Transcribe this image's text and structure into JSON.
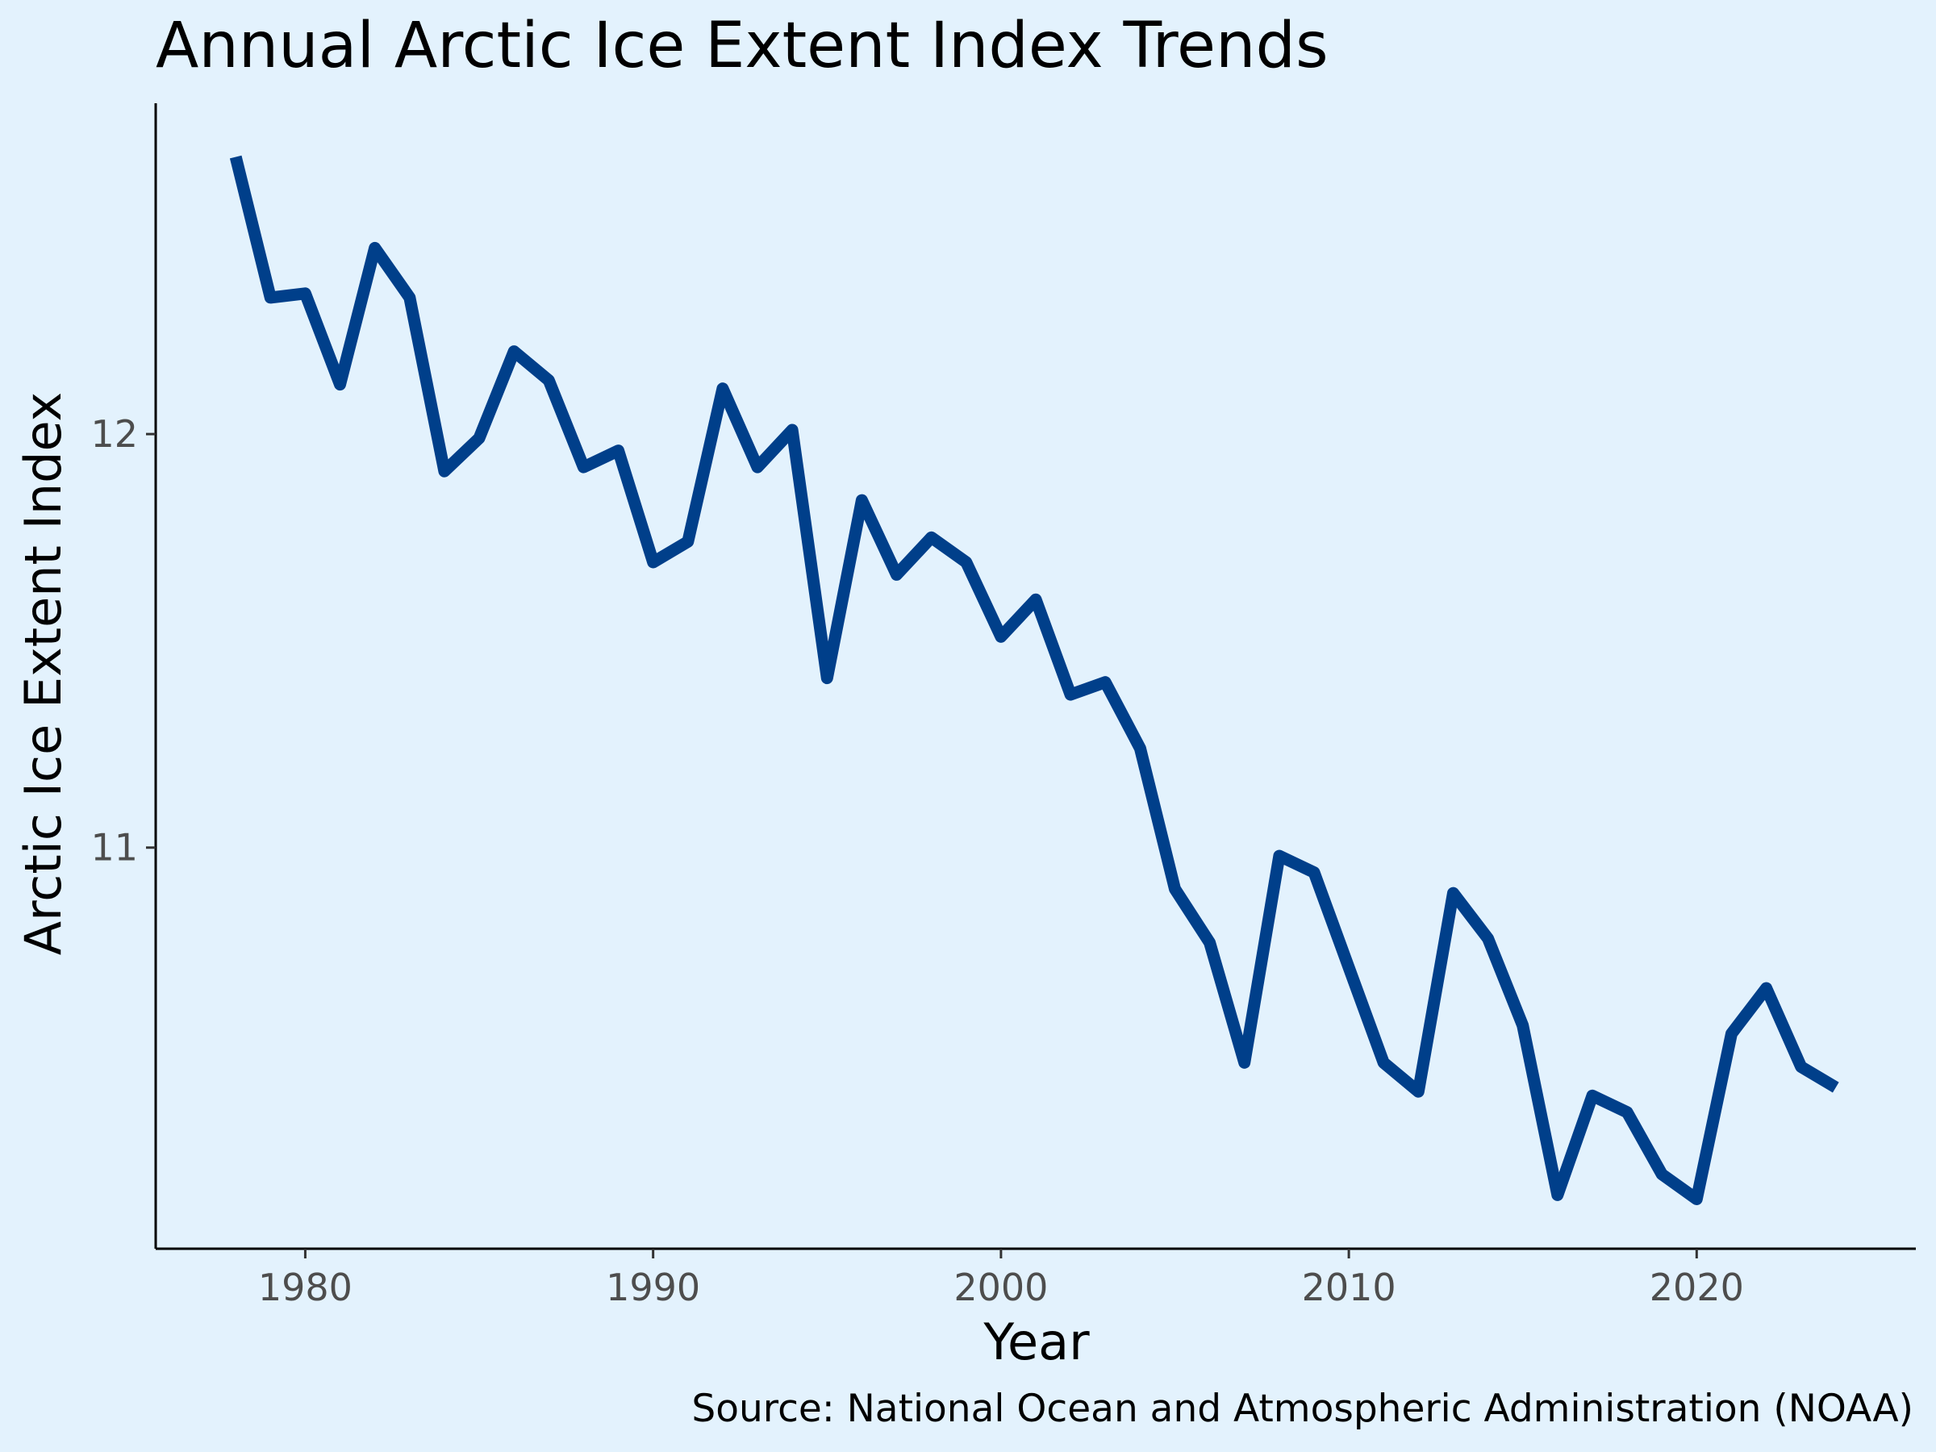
{
  "chart_data": {
    "type": "line",
    "title": "Annual Arctic Ice Extent Index Trends",
    "xlabel": "Year",
    "ylabel": "Arctic Ice Extent Index",
    "caption": "Source: National Ocean and Atmospheric Administration (NOAA)",
    "xlim": [
      1975.7,
      2026.3
    ],
    "ylim": [
      10.03,
      12.8
    ],
    "x_ticks": [
      1980,
      1990,
      2000,
      2010,
      2020
    ],
    "y_ticks": [
      11,
      12
    ],
    "grid": false,
    "legend": "none",
    "line_color": "#003f8a",
    "background_color": "#e3f2fd",
    "series": [
      {
        "x": [
          1978,
          1979,
          1980,
          1981,
          1982,
          1983,
          1984,
          1985,
          1986,
          1987,
          1988,
          1989,
          1990,
          1991,
          1992,
          1993,
          1994,
          1995,
          1996,
          1997,
          1998,
          1999,
          2000,
          2001,
          2002,
          2003,
          2004,
          2005,
          2006,
          2007,
          2008,
          2009,
          2010,
          2011,
          2012,
          2013,
          2014,
          2015,
          2016,
          2017,
          2018,
          2019,
          2020,
          2021,
          2022,
          2023,
          2024
        ],
        "values": [
          12.67,
          12.33,
          12.34,
          12.12,
          12.45,
          12.33,
          11.91,
          11.99,
          12.2,
          12.13,
          11.92,
          11.96,
          11.69,
          11.74,
          12.11,
          11.92,
          12.01,
          11.41,
          11.84,
          11.66,
          11.75,
          11.69,
          11.51,
          11.6,
          11.37,
          11.4,
          11.24,
          10.9,
          10.77,
          10.48,
          10.98,
          10.94,
          10.71,
          10.48,
          10.41,
          10.89,
          10.78,
          10.57,
          10.16,
          10.4,
          10.36,
          10.21,
          10.15,
          10.55,
          10.66,
          10.47,
          10.42
        ]
      }
    ]
  }
}
